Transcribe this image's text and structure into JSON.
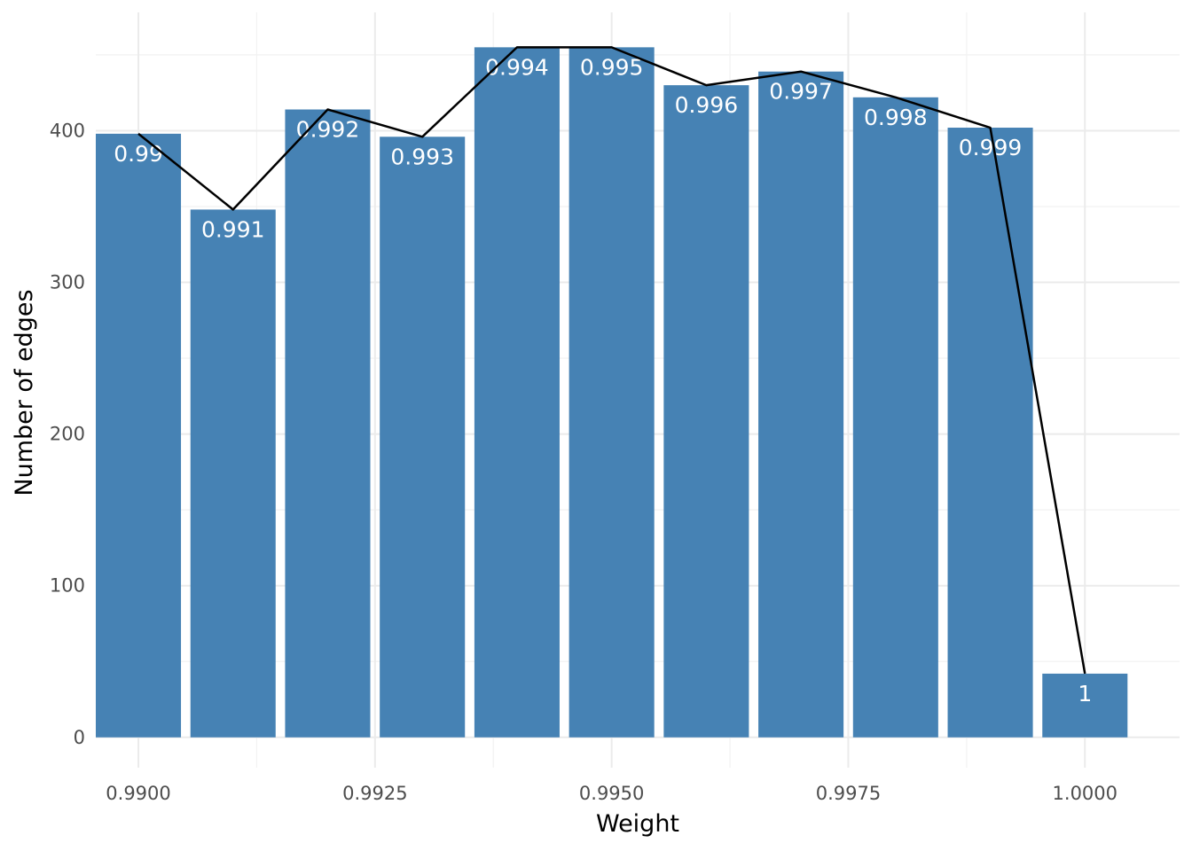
{
  "chart_data": {
    "type": "bar",
    "x": [
      0.99,
      0.991,
      0.992,
      0.993,
      0.994,
      0.995,
      0.996,
      0.997,
      0.998,
      0.999,
      1.0
    ],
    "values": [
      398,
      348,
      414,
      396,
      455,
      455,
      430,
      439,
      422,
      402,
      42
    ],
    "bar_labels": [
      "0.99",
      "0.991",
      "0.992",
      "0.993",
      "0.994",
      "0.995",
      "0.996",
      "0.997",
      "0.998",
      "0.999",
      "1"
    ],
    "line": {
      "x": [
        0.99,
        0.991,
        0.992,
        0.993,
        0.994,
        0.995,
        0.996,
        0.997,
        0.998,
        0.999,
        1.0
      ],
      "y": [
        398,
        348,
        414,
        396,
        455,
        455,
        430,
        439,
        422,
        402,
        42
      ]
    },
    "xlabel": "Weight",
    "ylabel": "Number of edges",
    "xticks": [
      0.99,
      0.9925,
      0.995,
      0.9975,
      1.0
    ],
    "xtick_labels": [
      "0.9900",
      "0.9925",
      "0.9950",
      "0.9975",
      "1.0000"
    ],
    "yticks": [
      0,
      100,
      200,
      300,
      400
    ],
    "ytick_labels": [
      "0",
      "100",
      "200",
      "300",
      "400"
    ],
    "xlim": [
      0.98955,
      1.001
    ],
    "ylim": [
      -20,
      478
    ],
    "grid": true,
    "legend": "none",
    "bar_color": "#4682B4",
    "line_color": "#000000"
  }
}
